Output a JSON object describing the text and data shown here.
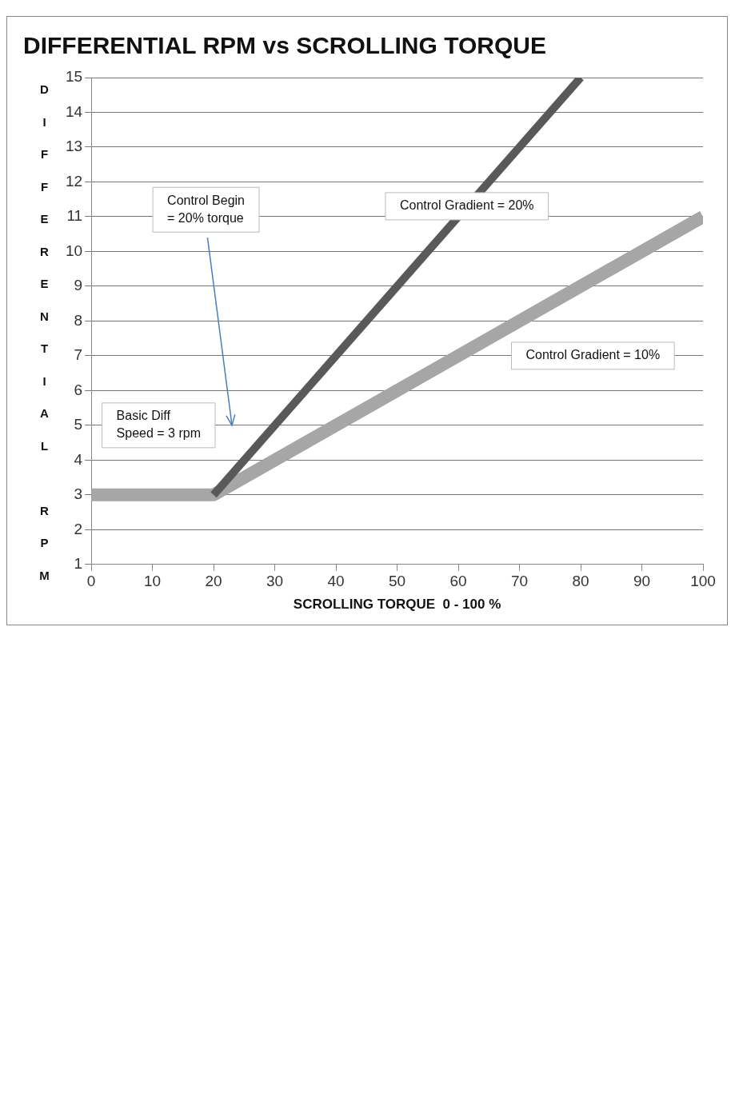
{
  "chart_data": {
    "type": "line",
    "title": "DIFFERENTIAL RPM vs SCROLLING TORQUE",
    "xlabel": "SCROLLING TORQUE  0 - 100 %",
    "ylabel": "DIFFERENTIAL RPM",
    "series": [
      {
        "color": "#a6a6a6",
        "x": [
          0,
          20,
          100
        ],
        "values": [
          3,
          3,
          11
        ]
      },
      {
        "color": "#595959",
        "x": [
          20,
          80
        ],
        "values": [
          3,
          15
        ]
      }
    ],
    "xlim": [
      0,
      100
    ],
    "xticks": [
      0,
      10,
      20,
      30,
      40,
      50,
      60,
      70,
      80,
      90,
      100
    ],
    "ylim": [
      1,
      15
    ],
    "yticks": [
      1,
      2,
      3,
      4,
      5,
      6,
      7,
      8,
      9,
      10,
      11,
      12,
      13,
      14,
      15
    ],
    "grid": "y",
    "legend": false,
    "marker": "none",
    "line_style": "solid",
    "annotations": [
      "Control Begin\n= 20% torque",
      "Basic Diff\nSpeed = 3 rpm",
      {
        "text": "Control Gradient = 20%",
        "x": 61.4,
        "y": 11.3
      },
      "Control Gradient = 10%"
    ]
  }
}
